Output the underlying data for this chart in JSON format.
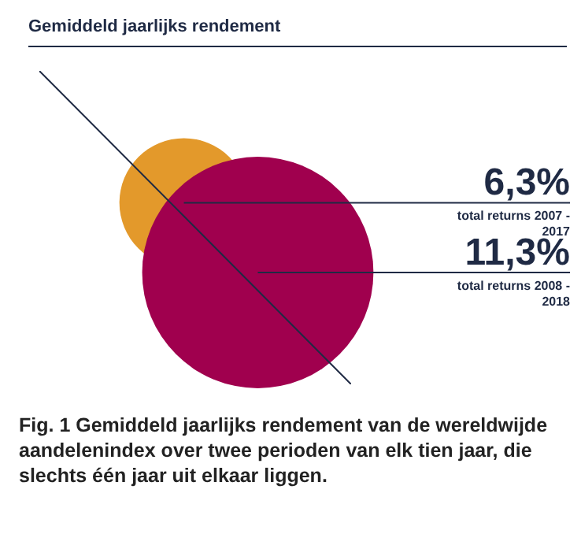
{
  "chart_data": {
    "type": "other",
    "title": "Gemiddeld jaarlijks rendement",
    "categories": [
      "total returns 2007 - 2017",
      "total returns 2008 - 2018"
    ],
    "values": [
      6.3,
      11.3
    ],
    "value_labels": [
      "6,3%",
      "11,3%"
    ],
    "colors": [
      "#e3992b",
      "#a0004e"
    ],
    "legend": false,
    "annotations": [
      "Fig. 1 Gemiddeld jaarlijks rendement van de wereldwijde aandelenindex over twee perioden van elk tien jaar, die slechts één jaar uit elkaar liggen."
    ]
  }
}
